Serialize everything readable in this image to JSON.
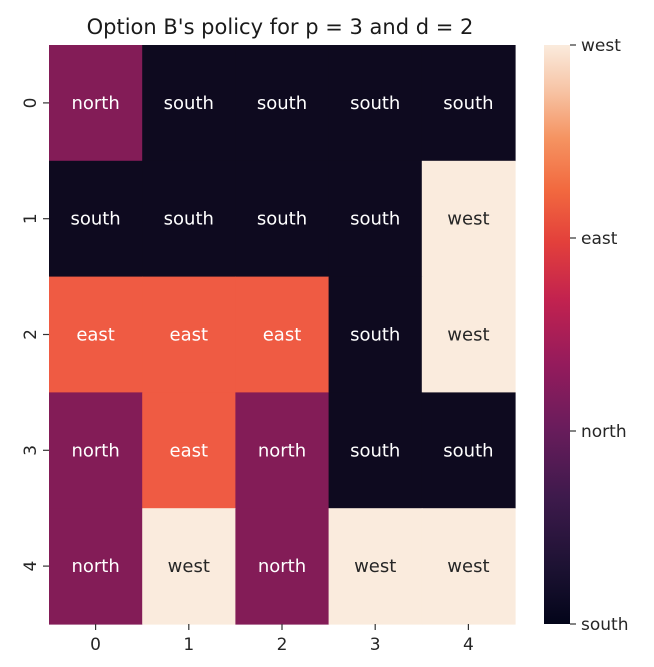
{
  "chart_data": {
    "type": "heatmap",
    "title": "Option B's policy for p = 3 and d = 2",
    "xlabel": "",
    "ylabel": "",
    "x_ticks": [
      "0",
      "1",
      "2",
      "3",
      "4"
    ],
    "y_ticks": [
      "0",
      "1",
      "2",
      "3",
      "4"
    ],
    "cells": [
      [
        "north",
        "south",
        "south",
        "south",
        "south"
      ],
      [
        "south",
        "south",
        "south",
        "south",
        "west"
      ],
      [
        "east",
        "east",
        "east",
        "south",
        "west"
      ],
      [
        "north",
        "east",
        "north",
        "south",
        "south"
      ],
      [
        "north",
        "west",
        "north",
        "west",
        "west"
      ]
    ],
    "action_values": {
      "south": 0,
      "north": 1,
      "east": 2,
      "west": 3
    },
    "colorbar": {
      "min": 0,
      "max": 3,
      "ticks": [
        {
          "value": 3,
          "label": "west"
        },
        {
          "value": 2,
          "label": "east"
        },
        {
          "value": 1,
          "label": "north"
        },
        {
          "value": 0,
          "label": "south"
        }
      ]
    },
    "colors": {
      "south": "#0e0a1f",
      "north": "#831c57",
      "east": "#ef5b43",
      "west": "#faebdd"
    },
    "colormap": "rocket",
    "grid": false
  }
}
